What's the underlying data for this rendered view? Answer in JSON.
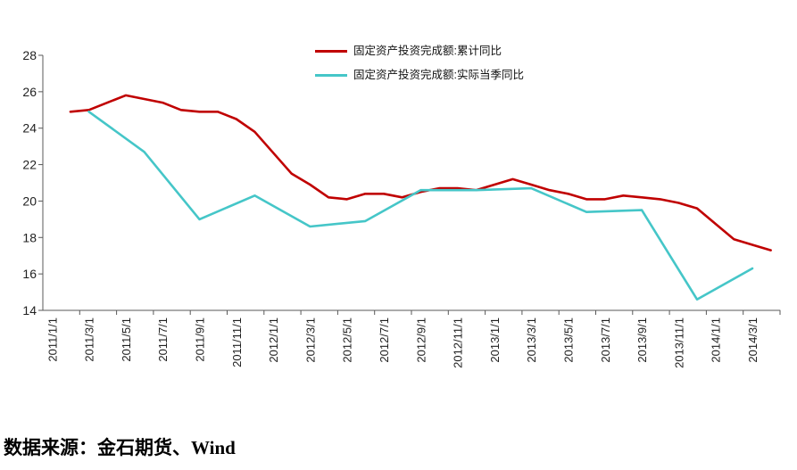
{
  "page": {
    "background": "#ffffff"
  },
  "legend": {
    "items": [
      {
        "label": "固定资产投资完成额:累计同比",
        "color": "#C00000"
      },
      {
        "label": "固定资产投资完成额:实际当季同比",
        "color": "#45C6C8"
      }
    ]
  },
  "footer": {
    "source_text": "数据来源：金石期货、Wind"
  },
  "chart_data": {
    "type": "line",
    "title": "",
    "xlabel": "",
    "ylabel": "",
    "ylim": [
      14,
      28
    ],
    "yticks": [
      14,
      16,
      18,
      20,
      22,
      24,
      26,
      28
    ],
    "grid": false,
    "legend_position": "top-center",
    "x_labels_rotation": -90,
    "x_tick_labels": [
      "2011/1/1",
      "2011/3/1",
      "2011/5/1",
      "2011/7/1",
      "2011/9/1",
      "2011/11/1",
      "2012/1/1",
      "2012/3/1",
      "2012/5/1",
      "2012/7/1",
      "2012/9/1",
      "2012/11/1",
      "2013/1/1",
      "2013/3/1",
      "2013/5/1",
      "2013/7/1",
      "2013/9/1",
      "2013/11/1",
      "2014/1/1",
      "2014/3/1"
    ],
    "categories": [
      "2011/1",
      "2011/2",
      "2011/3",
      "2011/4",
      "2011/5",
      "2011/6",
      "2011/7",
      "2011/8",
      "2011/9",
      "2011/10",
      "2011/11",
      "2011/12",
      "2012/1",
      "2012/2",
      "2012/3",
      "2012/4",
      "2012/5",
      "2012/6",
      "2012/7",
      "2012/8",
      "2012/9",
      "2012/10",
      "2012/11",
      "2012/12",
      "2013/1",
      "2013/2",
      "2013/3",
      "2013/4",
      "2013/5",
      "2013/6",
      "2013/7",
      "2013/8",
      "2013/9",
      "2013/10",
      "2013/11",
      "2013/12",
      "2014/1",
      "2014/2",
      "2014/3",
      "2014/4"
    ],
    "series": [
      {
        "name": "固定资产投资完成额:累计同比",
        "color": "#C00000",
        "frequency": "monthly",
        "values": [
          null,
          24.9,
          25.0,
          25.4,
          25.8,
          25.6,
          25.4,
          25.0,
          24.9,
          24.9,
          24.5,
          23.8,
          null,
          21.5,
          20.9,
          20.2,
          20.1,
          20.4,
          20.4,
          20.2,
          20.5,
          20.7,
          20.7,
          20.6,
          null,
          21.2,
          20.9,
          20.6,
          20.4,
          20.1,
          20.1,
          20.3,
          20.2,
          20.1,
          19.9,
          19.6,
          null,
          17.9,
          17.6,
          17.3
        ]
      },
      {
        "name": "固定资产投资完成额:实际当季同比",
        "color": "#45C6C8",
        "frequency": "quarterly",
        "values": [
          null,
          null,
          24.9,
          null,
          null,
          22.7,
          null,
          null,
          19.0,
          null,
          null,
          20.3,
          null,
          null,
          18.6,
          null,
          null,
          18.9,
          null,
          null,
          20.6,
          null,
          null,
          20.6,
          null,
          null,
          20.7,
          null,
          null,
          19.4,
          null,
          null,
          19.5,
          null,
          null,
          14.6,
          null,
          null,
          16.3,
          null
        ]
      }
    ]
  }
}
